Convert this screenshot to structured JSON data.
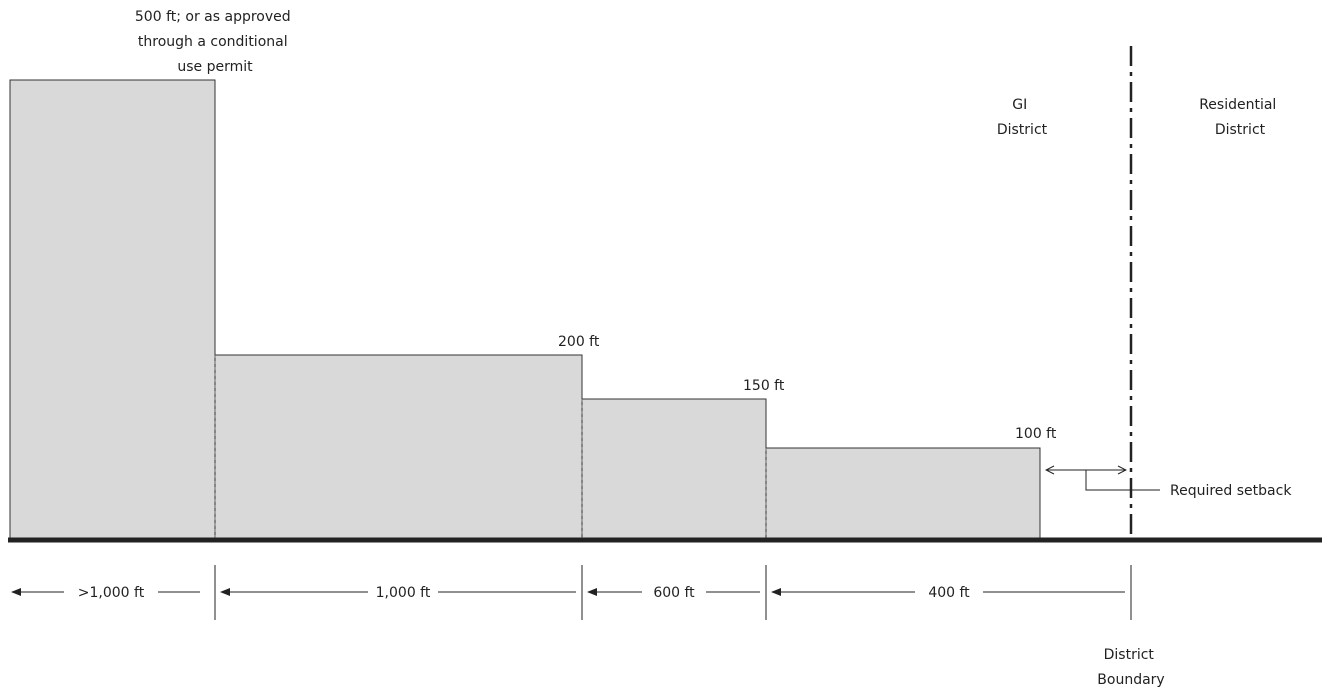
{
  "height_labels": {
    "tier_1": [
      "500 ft; or as approved",
      "through a conditional",
      "use permit"
    ],
    "tier_2": "200 ft",
    "tier_3": "150 ft",
    "tier_4": "100 ft"
  },
  "district_labels": {
    "gi": [
      "GI",
      "District"
    ],
    "residential": [
      "Residential",
      "District"
    ],
    "boundary": [
      "District",
      "Boundary"
    ]
  },
  "setback_label": "Required setback",
  "distance_labels": {
    "d1": ">1,000 ft",
    "d2": "1,000 ft",
    "d3": "600 ft",
    "d4": "400 ft"
  },
  "colors": {
    "block_fill": "#d9d9d9",
    "line": "#222222"
  }
}
